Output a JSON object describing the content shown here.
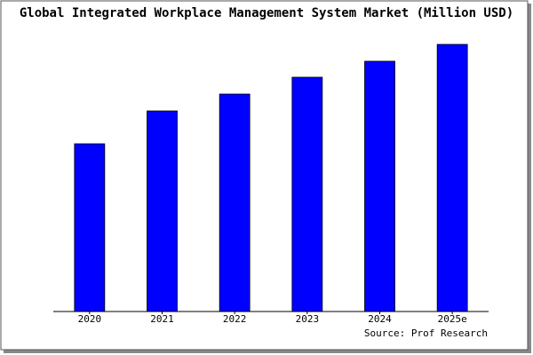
{
  "chart_data": {
    "type": "bar",
    "title": "Global Integrated Workplace Management System Market (Million USD)",
    "categories": [
      "2020",
      "2021",
      "2022",
      "2023",
      "2024",
      "2025e"
    ],
    "values": [
      189,
      226,
      245,
      264,
      282,
      301
    ],
    "color": "#0000ff",
    "ylim": [
      0,
      303
    ],
    "source": "Source: Prof Research"
  }
}
